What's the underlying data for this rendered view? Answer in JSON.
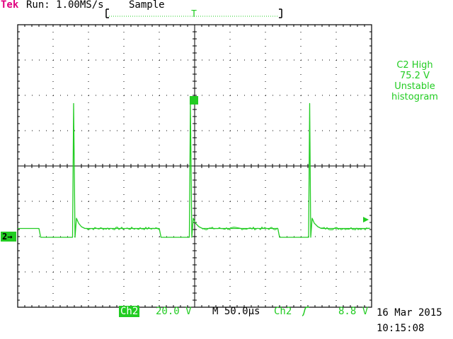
{
  "header": {
    "brand": "Tek",
    "run_status": "Run: 1.00MS/s",
    "acquisition_mode": "Sample"
  },
  "trigger_position": {
    "label": "T"
  },
  "measurement": {
    "line1": "C2 High",
    "line2": "75.2 V",
    "line3": "Unstable",
    "line4": "histogram"
  },
  "channel_marker": {
    "label": "2"
  },
  "footer": {
    "channel": "Ch2",
    "volts_per_div": "20.0 V",
    "timebase": "M 50.0µs",
    "trigger_source": "Ch2",
    "trigger_edge_icon": "rising-edge-icon",
    "trigger_level": "8.8 V"
  },
  "timestamp": {
    "date": "16 Mar 2015",
    "time": "10:15:08"
  },
  "colors": {
    "trace": "#22cc22",
    "brand": "#e0007f",
    "grid": "#000000"
  },
  "chart_data": {
    "type": "line",
    "xlabel": "",
    "ylabel": "",
    "x_divisions": 10,
    "y_divisions": 8,
    "x_units": "div",
    "y_units": "div",
    "xlim": [
      0,
      10
    ],
    "ylim": [
      -4,
      4
    ],
    "series": [
      {
        "x": [
          0.0,
          0.6,
          0.65,
          1.55,
          1.58,
          1.62,
          1.66,
          1.72,
          1.8,
          1.9,
          4.0,
          4.05,
          4.85,
          4.88,
          4.92,
          4.96,
          5.02,
          5.12,
          5.22,
          7.35,
          7.4,
          8.22,
          8.25,
          8.28,
          8.32,
          8.38,
          8.48,
          8.58,
          9.95
        ],
        "y": [
          -1.77,
          -1.77,
          -2.02,
          -2.02,
          1.77,
          -2.02,
          -1.48,
          -1.62,
          -1.72,
          -1.77,
          -1.77,
          -2.02,
          -2.02,
          1.77,
          -2.02,
          -1.48,
          -1.62,
          -1.72,
          -1.77,
          -1.77,
          -2.02,
          -2.02,
          1.77,
          -2.02,
          -1.48,
          -1.62,
          -1.72,
          -1.77,
          -1.77
        ]
      }
    ]
  }
}
